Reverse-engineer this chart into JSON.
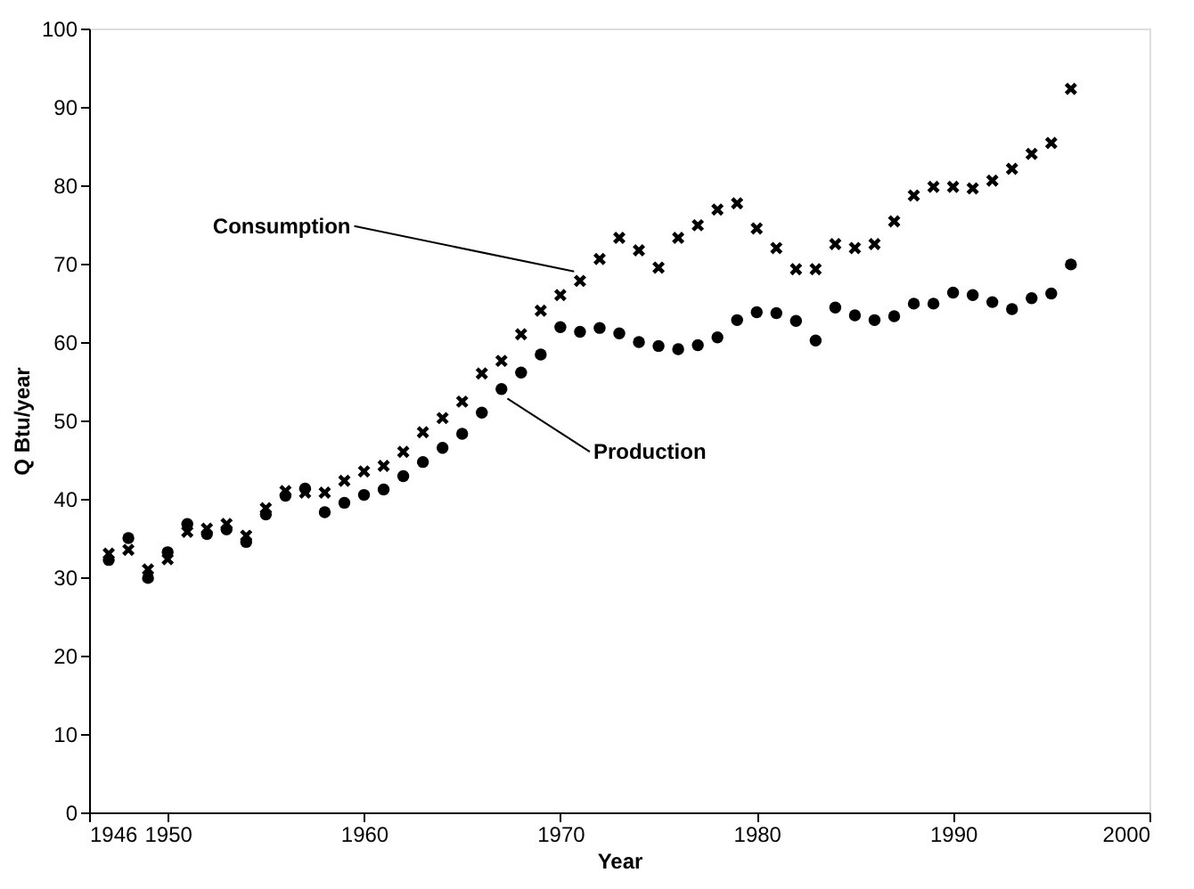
{
  "chart_data": {
    "type": "scatter",
    "xlabel": "Year",
    "ylabel": "Q Btu/year",
    "x": [
      1947,
      1948,
      1949,
      1950,
      1951,
      1952,
      1953,
      1954,
      1955,
      1956,
      1957,
      1958,
      1959,
      1960,
      1961,
      1962,
      1963,
      1964,
      1965,
      1966,
      1967,
      1968,
      1969,
      1970,
      1971,
      1972,
      1973,
      1974,
      1975,
      1976,
      1977,
      1978,
      1979,
      1980,
      1981,
      1982,
      1983,
      1984,
      1985,
      1986,
      1987,
      1988,
      1989,
      1990,
      1991,
      1992,
      1993,
      1994,
      1995,
      1996
    ],
    "series": [
      {
        "name": "Consumption",
        "color": "#000000",
        "marker": "cross",
        "values": [
          33,
          33.5,
          31,
          32.3,
          35.8,
          36.2,
          36.8,
          35.3,
          38.8,
          41,
          40.8,
          40.8,
          42.3,
          43.5,
          44.2,
          46,
          48.5,
          50.3,
          52.4,
          56,
          57.6,
          61,
          64,
          66,
          67.8,
          70.6,
          73.3,
          71.7,
          69.5,
          73.3,
          74.9,
          76.9,
          77.7,
          74.5,
          72,
          69.3,
          69.3,
          72.5,
          72,
          72.5,
          75.4,
          78.7,
          79.8,
          79.8,
          79.6,
          80.6,
          82.1,
          84,
          85.4,
          92.3
        ]
      },
      {
        "name": "Production",
        "color": "#000000",
        "marker": "circle",
        "values": [
          32.2,
          35,
          29.9,
          33.2,
          36.8,
          35.5,
          36.1,
          34.5,
          38,
          40.4,
          41.3,
          38.3,
          39.5,
          40.5,
          41.2,
          42.9,
          44.7,
          46.5,
          48.3,
          51,
          54,
          56.1,
          58.4,
          61.9,
          61.3,
          61.8,
          61.1,
          60,
          59.5,
          59.1,
          59.6,
          60.6,
          62.8,
          63.8,
          63.7,
          62.7,
          60.2,
          64.4,
          63.4,
          62.8,
          63.3,
          64.9,
          64.9,
          66.3,
          66,
          65.1,
          64.2,
          65.6,
          66.2,
          69.9
        ]
      }
    ],
    "xlim": [
      1946,
      2000
    ],
    "xticks": [
      1946,
      1950,
      1960,
      1970,
      1980,
      1990,
      2000
    ],
    "ylim": [
      0,
      100
    ],
    "yticks": [
      0,
      10,
      20,
      30,
      40,
      50,
      60,
      70,
      80,
      90,
      100
    ],
    "grid": false,
    "legend": false
  }
}
